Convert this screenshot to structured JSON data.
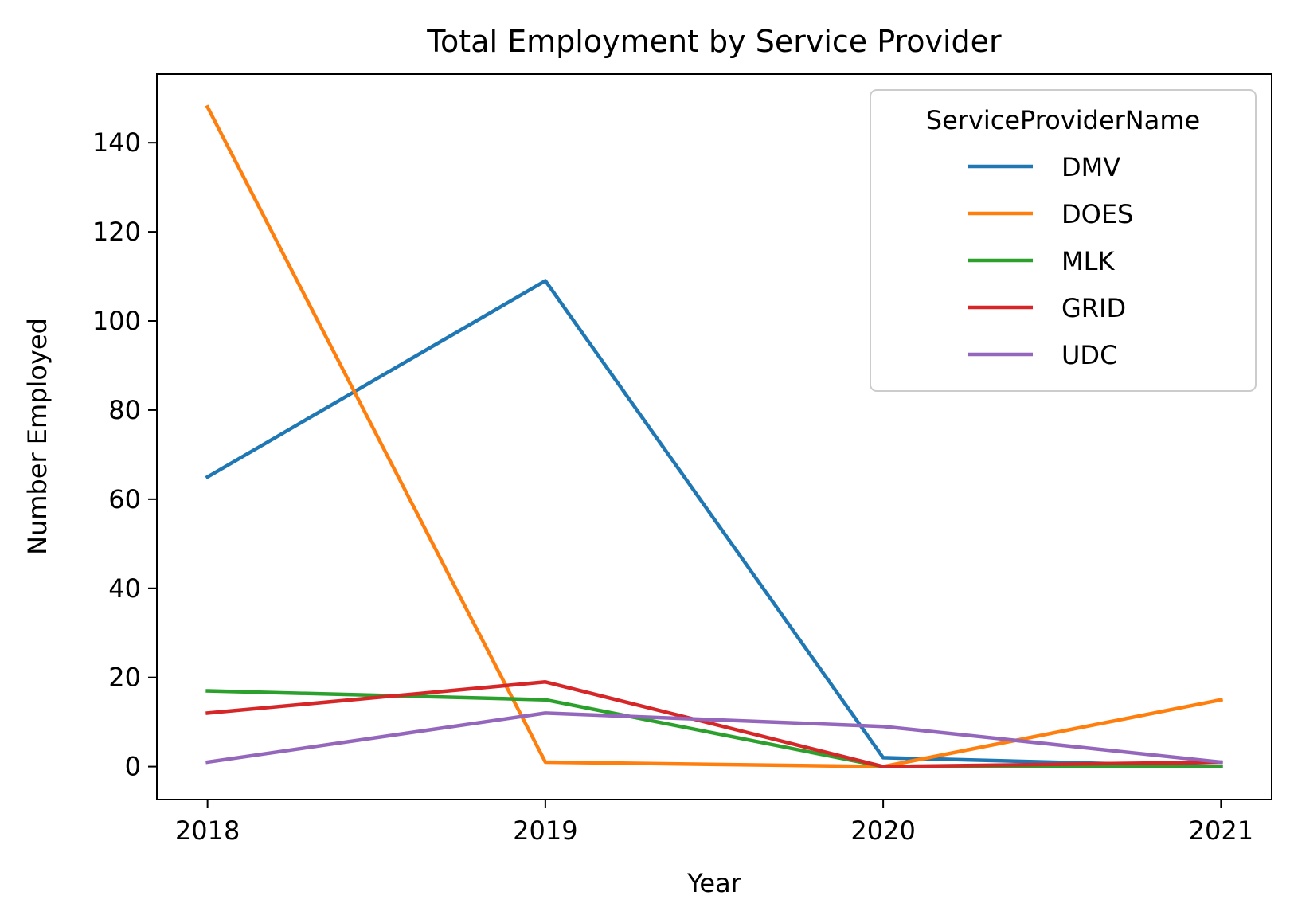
{
  "chart_data": {
    "type": "line",
    "title": "Total Employment by Service Provider",
    "xlabel": "Year",
    "ylabel": "Number Employed",
    "x": [
      2018,
      2019,
      2020,
      2021
    ],
    "x_tick_labels": [
      "2018",
      "2019",
      "2020",
      "2021"
    ],
    "y_ticks": [
      0,
      20,
      40,
      60,
      80,
      100,
      120,
      140
    ],
    "y_tick_labels": [
      "0",
      "20",
      "40",
      "60",
      "80",
      "100",
      "120",
      "140"
    ],
    "xlim": [
      2017.85,
      2021.15
    ],
    "ylim": [
      -7.4,
      155.4
    ],
    "grid": false,
    "legend": {
      "title": "ServiceProviderName",
      "placement": "top-right"
    },
    "series": [
      {
        "name": "DMV",
        "color": "#1f77b4",
        "values": [
          65,
          109,
          2,
          0
        ]
      },
      {
        "name": "DOES",
        "color": "#ff7f0e",
        "values": [
          148,
          1,
          0,
          15
        ]
      },
      {
        "name": "MLK",
        "color": "#2ca02c",
        "values": [
          17,
          15,
          0,
          0
        ]
      },
      {
        "name": "GRID",
        "color": "#d62728",
        "values": [
          12,
          19,
          0,
          1
        ]
      },
      {
        "name": "UDC",
        "color": "#9467bd",
        "values": [
          1,
          12,
          9,
          1
        ]
      }
    ]
  }
}
